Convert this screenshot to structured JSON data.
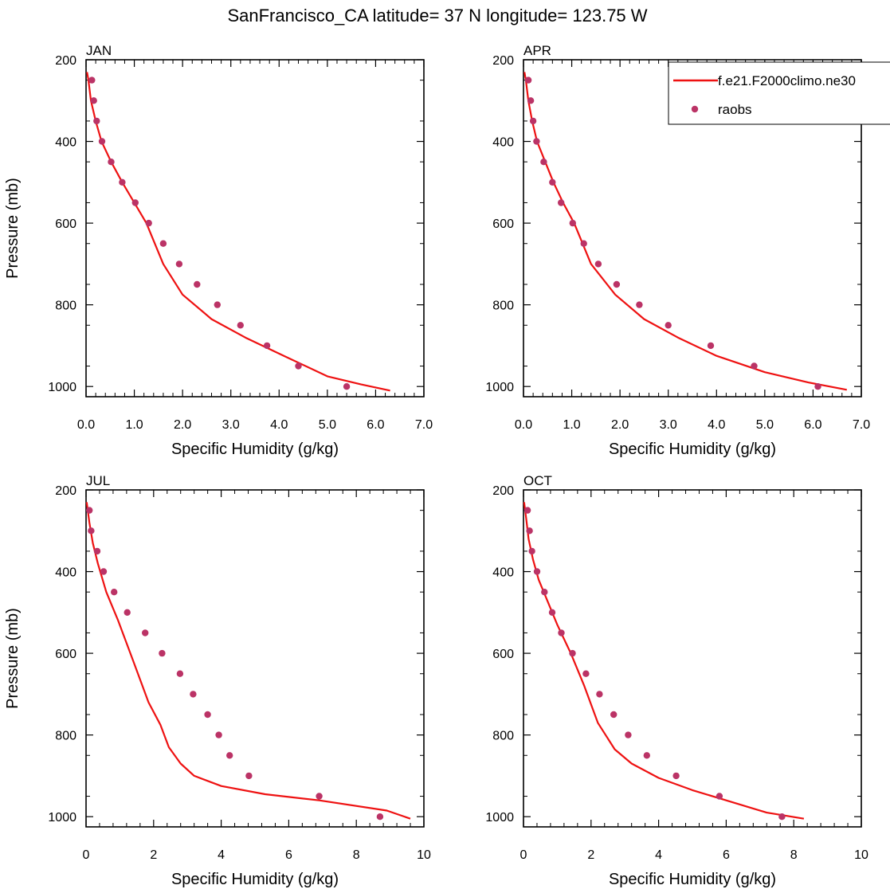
{
  "title": "SanFrancisco_CA  latitude= 37 N longitude= 123.75 W",
  "colors": {
    "model": "#ee1111",
    "obs": "#bb3366",
    "axis": "#000000"
  },
  "legend": {
    "placement": "top-right",
    "model_label": "f.e21.F2000climo.ne30",
    "obs_label": "raobs"
  },
  "chart_data": [
    {
      "type": "line",
      "panel": "JAN",
      "xlabel": "Specific Humidity (g/kg)",
      "ylabel": "Pressure (mb)",
      "xlim": [
        0,
        7
      ],
      "ylim": [
        200,
        1025
      ],
      "y_reversed": true,
      "xticks": [
        0,
        1,
        2,
        3,
        4,
        5,
        6,
        7
      ],
      "xtick_labels": [
        "0.0",
        "1.0",
        "2.0",
        "3.0",
        "4.0",
        "5.0",
        "6.0",
        "7.0"
      ],
      "yticks": [
        200,
        400,
        600,
        800,
        1000
      ],
      "ytick_labels": [
        "200",
        "400",
        "600",
        "800",
        "1000"
      ],
      "series": [
        {
          "name": "f.e21.F2000climo.ne30",
          "kind": "line",
          "x": [
            0.02,
            0.05,
            0.1,
            0.2,
            0.32,
            0.52,
            0.75,
            1.0,
            1.25,
            1.6,
            2.0,
            2.6,
            3.3,
            4.1,
            5.0,
            5.7,
            6.3
          ],
          "y": [
            230,
            250,
            300,
            350,
            400,
            450,
            500,
            550,
            600,
            700,
            775,
            835,
            880,
            925,
            975,
            995,
            1010
          ]
        },
        {
          "name": "raobs",
          "kind": "marker",
          "x": [
            0.12,
            0.16,
            0.22,
            0.33,
            0.52,
            0.75,
            1.02,
            1.3,
            1.6,
            1.93,
            2.3,
            2.72,
            3.2,
            3.75,
            4.4,
            5.4
          ],
          "y": [
            250,
            300,
            350,
            400,
            450,
            500,
            550,
            600,
            650,
            700,
            750,
            800,
            850,
            900,
            950,
            1000
          ]
        }
      ]
    },
    {
      "type": "line",
      "panel": "APR",
      "xlabel": "Specific Humidity (g/kg)",
      "ylabel": "",
      "xlim": [
        0,
        7
      ],
      "ylim": [
        200,
        1025
      ],
      "y_reversed": true,
      "xticks": [
        0,
        1,
        2,
        3,
        4,
        5,
        6,
        7
      ],
      "xtick_labels": [
        "0.0",
        "1.0",
        "2.0",
        "3.0",
        "4.0",
        "5.0",
        "6.0",
        "7.0"
      ],
      "yticks": [
        200,
        400,
        600,
        800,
        1000
      ],
      "ytick_labels": [
        "200",
        "400",
        "600",
        "800",
        "1000"
      ],
      "series": [
        {
          "name": "f.e21.F2000climo.ne30",
          "kind": "line",
          "x": [
            0.02,
            0.05,
            0.1,
            0.18,
            0.28,
            0.45,
            0.62,
            0.82,
            1.05,
            1.4,
            1.9,
            2.5,
            3.2,
            4.0,
            5.0,
            5.9,
            6.7
          ],
          "y": [
            230,
            250,
            300,
            350,
            400,
            450,
            500,
            550,
            600,
            700,
            775,
            835,
            880,
            925,
            965,
            990,
            1008
          ]
        },
        {
          "name": "raobs",
          "kind": "marker",
          "x": [
            0.1,
            0.15,
            0.2,
            0.27,
            0.42,
            0.6,
            0.78,
            1.02,
            1.25,
            1.55,
            1.93,
            2.4,
            3.0,
            3.88,
            4.78,
            6.1
          ],
          "y": [
            250,
            300,
            350,
            400,
            450,
            500,
            550,
            600,
            650,
            700,
            750,
            800,
            850,
            900,
            950,
            1000
          ]
        }
      ]
    },
    {
      "type": "line",
      "panel": "JUL",
      "xlabel": "Specific Humidity (g/kg)",
      "ylabel": "Pressure (mb)",
      "xlim": [
        0,
        10
      ],
      "ylim": [
        200,
        1025
      ],
      "y_reversed": true,
      "xticks": [
        0,
        2,
        4,
        6,
        8,
        10
      ],
      "xtick_labels": [
        "0",
        "2",
        "4",
        "6",
        "8",
        "10"
      ],
      "yticks": [
        200,
        400,
        600,
        800,
        1000
      ],
      "ytick_labels": [
        "200",
        "400",
        "600",
        "800",
        "1000"
      ],
      "series": [
        {
          "name": "f.e21.F2000climo.ne30",
          "kind": "line",
          "x": [
            0.02,
            0.1,
            0.2,
            0.35,
            0.6,
            0.95,
            1.4,
            1.85,
            2.2,
            2.45,
            2.8,
            3.2,
            4.0,
            5.3,
            6.9,
            8.9,
            9.6
          ],
          "y": [
            230,
            280,
            330,
            380,
            450,
            520,
            620,
            720,
            775,
            830,
            870,
            900,
            925,
            945,
            960,
            985,
            1005
          ]
        },
        {
          "name": "raobs",
          "kind": "marker",
          "x": [
            0.1,
            0.15,
            0.33,
            0.52,
            0.83,
            1.22,
            1.75,
            2.25,
            2.78,
            3.17,
            3.6,
            3.93,
            4.25,
            4.82,
            6.9,
            8.7
          ],
          "y": [
            250,
            300,
            350,
            400,
            450,
            500,
            550,
            600,
            650,
            700,
            750,
            800,
            850,
            900,
            950,
            1000
          ]
        }
      ]
    },
    {
      "type": "line",
      "panel": "OCT",
      "xlabel": "Specific Humidity (g/kg)",
      "ylabel": "",
      "xlim": [
        0,
        10
      ],
      "ylim": [
        200,
        1025
      ],
      "y_reversed": true,
      "xticks": [
        0,
        2,
        4,
        6,
        8,
        10
      ],
      "xtick_labels": [
        "0",
        "2",
        "4",
        "6",
        "8",
        "10"
      ],
      "yticks": [
        200,
        400,
        600,
        800,
        1000
      ],
      "ytick_labels": [
        "200",
        "400",
        "600",
        "800",
        "1000"
      ],
      "series": [
        {
          "name": "f.e21.F2000climo.ne30",
          "kind": "line",
          "x": [
            0.02,
            0.08,
            0.15,
            0.28,
            0.45,
            0.7,
            1.0,
            1.4,
            1.8,
            2.2,
            2.7,
            3.2,
            4.0,
            5.0,
            6.0,
            7.2,
            8.3
          ],
          "y": [
            230,
            270,
            320,
            370,
            420,
            470,
            530,
            600,
            680,
            770,
            835,
            870,
            905,
            935,
            960,
            990,
            1005
          ]
        },
        {
          "name": "raobs",
          "kind": "marker",
          "x": [
            0.12,
            0.18,
            0.25,
            0.4,
            0.62,
            0.85,
            1.12,
            1.45,
            1.85,
            2.25,
            2.67,
            3.1,
            3.65,
            4.52,
            5.8,
            7.65
          ],
          "y": [
            250,
            300,
            350,
            400,
            450,
            500,
            550,
            600,
            650,
            700,
            750,
            800,
            850,
            900,
            950,
            1000
          ]
        }
      ]
    }
  ]
}
